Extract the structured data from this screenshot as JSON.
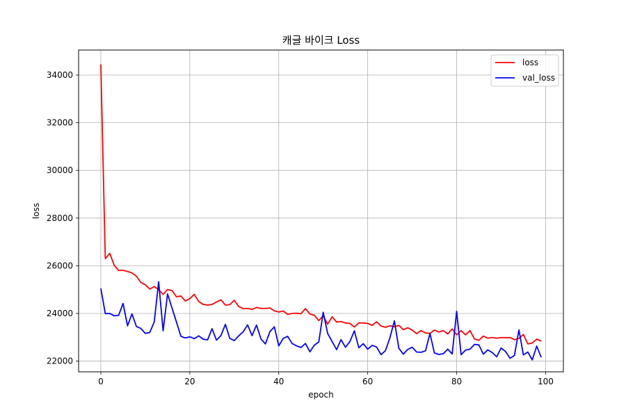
{
  "chart_data": {
    "type": "line",
    "title": "캐글 바이크 Loss",
    "xlabel": "epoch",
    "ylabel": "loss",
    "xlim": [
      -5,
      104
    ],
    "ylim": [
      21550,
      35050
    ],
    "xticks": [
      0,
      20,
      40,
      60,
      80,
      100
    ],
    "yticks": [
      22000,
      24000,
      26000,
      28000,
      30000,
      32000,
      34000
    ],
    "grid": true,
    "legend_position": "top-right",
    "colors": {
      "loss": "#ff0000",
      "val_loss": "#0000ff",
      "grid": "#b0b0b0"
    },
    "series": [
      {
        "name": "loss",
        "color": "#ff0000",
        "x_start": 0,
        "values": [
          34450,
          26300,
          26520,
          26020,
          25800,
          25810,
          25760,
          25700,
          25560,
          25300,
          25200,
          25020,
          25130,
          25000,
          24800,
          25000,
          24960,
          24700,
          24730,
          24520,
          24620,
          24800,
          24500,
          24380,
          24350,
          24380,
          24480,
          24570,
          24350,
          24370,
          24550,
          24290,
          24200,
          24210,
          24170,
          24250,
          24210,
          24210,
          24230,
          24110,
          24060,
          24100,
          23960,
          24000,
          24010,
          23990,
          24200,
          23980,
          23920,
          23700,
          23900,
          23550,
          23860,
          23640,
          23660,
          23600,
          23580,
          23430,
          23600,
          23600,
          23580,
          23500,
          23650,
          23470,
          23420,
          23480,
          23440,
          23500,
          23320,
          23400,
          23300,
          23150,
          23280,
          23180,
          23160,
          23300,
          23220,
          23280,
          23140,
          23350,
          23100,
          23280,
          23100,
          23280,
          22930,
          22870,
          23050,
          22960,
          22990,
          22960,
          22990,
          22980,
          22990,
          22900,
          22950,
          23120,
          22720,
          22760,
          22920,
          22840
        ]
      },
      {
        "name": "val_loss",
        "color": "#0000ff",
        "x_start": 0,
        "values": [
          25050,
          23990,
          24000,
          23900,
          23920,
          24420,
          23480,
          23980,
          23450,
          23370,
          23160,
          23200,
          23640,
          25330,
          23270,
          24820,
          24230,
          23640,
          23040,
          22970,
          23020,
          22940,
          23060,
          22920,
          22890,
          23360,
          22880,
          23070,
          23540,
          22950,
          22860,
          23060,
          23230,
          23520,
          23070,
          23510,
          22930,
          22720,
          23230,
          23440,
          22640,
          22950,
          23040,
          22740,
          22640,
          22570,
          22740,
          22390,
          22670,
          22800,
          24050,
          23160,
          22820,
          22480,
          22900,
          22580,
          22820,
          23270,
          22560,
          22730,
          22500,
          22660,
          22590,
          22270,
          22440,
          22980,
          23690,
          22540,
          22290,
          22490,
          22580,
          22380,
          22370,
          22430,
          23160,
          22340,
          22280,
          22310,
          22500,
          22300,
          24090,
          22270,
          22460,
          22500,
          22700,
          22680,
          22290,
          22470,
          22360,
          22180,
          22550,
          22400,
          22120,
          22240,
          23310,
          22260,
          22380,
          22050,
          22630,
          22160
        ]
      }
    ]
  }
}
